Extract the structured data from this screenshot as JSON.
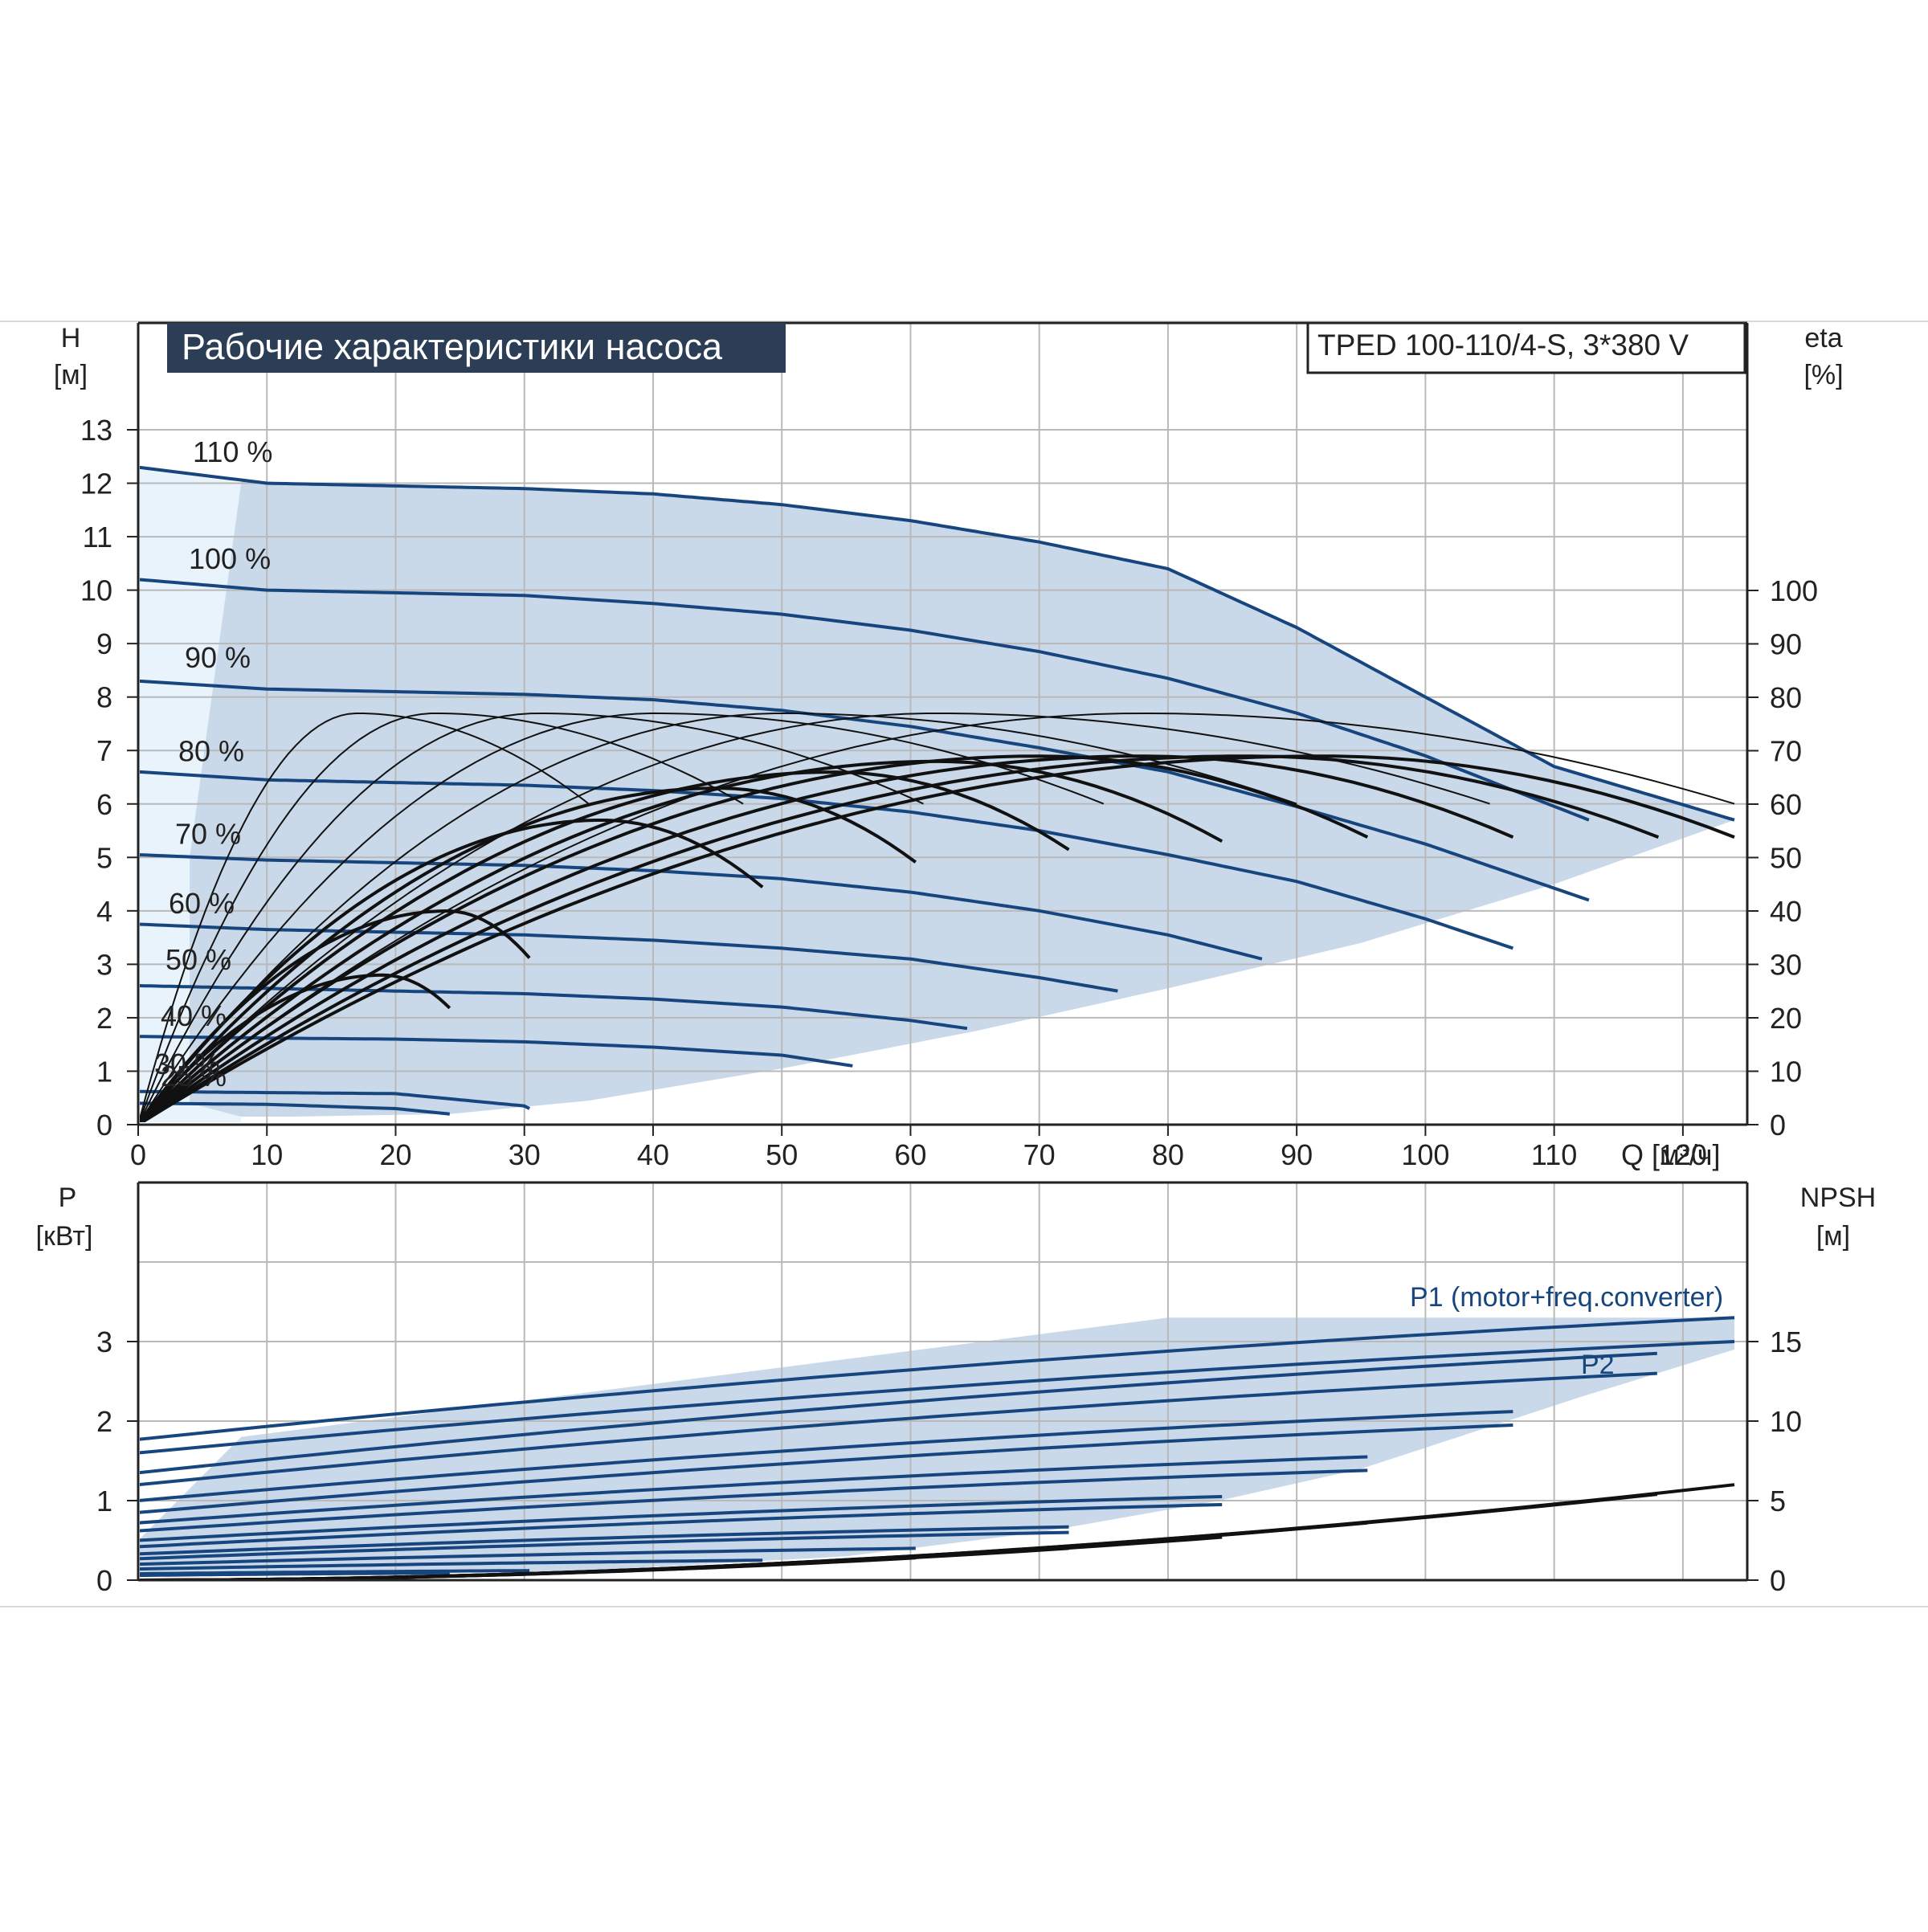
{
  "chart_data": [
    {
      "type": "line",
      "title": "Рабочие характеристики насоса",
      "model": "TPED 100-110/4-S, 3*380 V",
      "xlabel": "Q [м³/ч]",
      "ylabel_left": [
        "H",
        "[м]"
      ],
      "ylabel_right": [
        "eta",
        "[%]"
      ],
      "xlim": [
        0,
        125
      ],
      "ylim_left": [
        0,
        13
      ],
      "ylim_right": [
        0,
        100
      ],
      "x_ticks": [
        0,
        10,
        20,
        30,
        40,
        50,
        60,
        70,
        80,
        90,
        100,
        110,
        120
      ],
      "y_ticks_left": [
        0,
        1,
        2,
        3,
        4,
        5,
        6,
        7,
        8,
        9,
        10,
        11,
        12,
        13
      ],
      "y_ticks_right": [
        0,
        10,
        20,
        30,
        40,
        50,
        60,
        70,
        80,
        90,
        100
      ],
      "grid": true,
      "colors": {
        "curve": "#17467f",
        "area": "#c9d9ea",
        "area_light": "#e8f3fc",
        "eff": "#111111",
        "grid": "#b9b9b9",
        "titlebar": "#2c3e55"
      },
      "speed_curves": [
        {
          "name": "110 %",
          "q": [
            0,
            10,
            20,
            30,
            40,
            50,
            60,
            70,
            80,
            90,
            100,
            110,
            124
          ],
          "h": [
            12.3,
            12.0,
            11.95,
            11.9,
            11.8,
            11.6,
            11.3,
            10.9,
            10.4,
            9.3,
            8.0,
            6.7,
            5.7
          ]
        },
        {
          "name": "100 %",
          "q": [
            0,
            10,
            20,
            30,
            40,
            50,
            60,
            70,
            80,
            90,
            100,
            112.7
          ],
          "h": [
            10.2,
            10.0,
            9.95,
            9.9,
            9.75,
            9.55,
            9.25,
            8.85,
            8.35,
            7.7,
            6.9,
            5.7
          ]
        },
        {
          "name": "90 %",
          "q": [
            0,
            10,
            20,
            30,
            40,
            50,
            60,
            70,
            80,
            90,
            100,
            112.7
          ],
          "h": [
            8.3,
            8.15,
            8.1,
            8.05,
            7.95,
            7.75,
            7.45,
            7.05,
            6.6,
            5.95,
            5.25,
            4.2
          ]
        },
        {
          "name": "80 %",
          "q": [
            0,
            10,
            20,
            30,
            40,
            50,
            60,
            70,
            80,
            90,
            100,
            106.8
          ],
          "h": [
            6.6,
            6.45,
            6.4,
            6.35,
            6.25,
            6.1,
            5.85,
            5.5,
            5.05,
            4.55,
            3.85,
            3.3
          ]
        },
        {
          "name": "70 %",
          "q": [
            0,
            10,
            20,
            30,
            40,
            50,
            60,
            70,
            80,
            87.3
          ],
          "h": [
            5.05,
            4.95,
            4.9,
            4.85,
            4.75,
            4.6,
            4.35,
            4.0,
            3.55,
            3.1
          ]
        },
        {
          "name": "60 %",
          "q": [
            0,
            10,
            20,
            30,
            40,
            50,
            60,
            70,
            76.1
          ],
          "h": [
            3.75,
            3.65,
            3.6,
            3.55,
            3.45,
            3.3,
            3.1,
            2.75,
            2.5
          ]
        },
        {
          "name": "50 %",
          "q": [
            0,
            10,
            20,
            30,
            40,
            50,
            60,
            64.4
          ],
          "h": [
            2.6,
            2.55,
            2.5,
            2.45,
            2.35,
            2.2,
            1.95,
            1.8
          ]
        },
        {
          "name": "40 %",
          "q": [
            0,
            10,
            20,
            30,
            40,
            50,
            55.5
          ],
          "h": [
            1.65,
            1.62,
            1.6,
            1.55,
            1.45,
            1.3,
            1.1
          ]
        },
        {
          "name": "30 %",
          "q": [
            0,
            10,
            20,
            30,
            30.4
          ],
          "h": [
            0.62,
            0.6,
            0.58,
            0.35,
            0.3
          ]
        },
        {
          "name": "25 %",
          "q": [
            0,
            10,
            20,
            24.2
          ],
          "h": [
            0.4,
            0.38,
            0.3,
            0.2
          ]
        }
      ],
      "speed_labels": [
        "110 %",
        "100 %",
        "90 %",
        "80 %",
        "70 %",
        "60 %",
        "50 %",
        "40 %",
        "30 %",
        "25 %"
      ],
      "efficiency_curves": [
        {
          "q_max": 24.2,
          "q_peak": 19,
          "eta_peak": 28
        },
        {
          "q_max": 30.4,
          "q_peak": 24,
          "eta_peak": 40
        },
        {
          "q_max": 48.5,
          "q_peak": 36,
          "eta_peak": 57
        },
        {
          "q_max": 60.4,
          "q_peak": 45,
          "eta_peak": 63
        },
        {
          "q_max": 72.3,
          "q_peak": 54,
          "eta_peak": 66
        },
        {
          "q_max": 84.2,
          "q_peak": 62,
          "eta_peak": 68
        },
        {
          "q_max": 95.5,
          "q_peak": 70,
          "eta_peak": 69
        },
        {
          "q_max": 106.8,
          "q_peak": 78,
          "eta_peak": 69
        },
        {
          "q_max": 118.1,
          "q_peak": 86,
          "eta_peak": 69
        },
        {
          "q_max": 124,
          "q_peak": 92,
          "eta_peak": 69
        },
        {
          "q_max": 35,
          "q_peak": 17,
          "eta_peak": 77,
          "thin": true
        },
        {
          "q_max": 47,
          "q_peak": 23,
          "eta_peak": 77,
          "thin": true
        },
        {
          "q_max": 61,
          "q_peak": 31,
          "eta_peak": 77,
          "thin": true
        },
        {
          "q_max": 75,
          "q_peak": 40,
          "eta_peak": 77,
          "thin": true
        },
        {
          "q_max": 90,
          "q_peak": 50,
          "eta_peak": 77,
          "thin": true
        },
        {
          "q_max": 105,
          "q_peak": 62,
          "eta_peak": 77,
          "thin": true
        },
        {
          "q_max": 124,
          "q_peak": 78,
          "eta_peak": 77,
          "thin": true
        }
      ]
    },
    {
      "type": "line",
      "xlim": [
        0,
        125
      ],
      "ylabel_left": [
        "P",
        "[кВт]"
      ],
      "ylabel_right": [
        "NPSH",
        "[м]"
      ],
      "ylim_left": [
        0,
        4
      ],
      "ylim_right": [
        0,
        20
      ],
      "y_ticks_left": [
        0,
        1,
        2,
        3
      ],
      "y_ticks_right": [
        0,
        5,
        10,
        15
      ],
      "series_labels": [
        "P1 (motor+freq.converter)",
        "P2"
      ],
      "power_curves": [
        {
          "q_max": 124,
          "p_start": 1.77,
          "p_end": 3.3
        },
        {
          "q_max": 124,
          "p_start": 1.6,
          "p_end": 3.0
        },
        {
          "q_max": 118,
          "p_start": 1.35,
          "p_end": 2.85
        },
        {
          "q_max": 118,
          "p_start": 1.2,
          "p_end": 2.6
        },
        {
          "q_max": 106.8,
          "p_start": 1.0,
          "p_end": 2.12
        },
        {
          "q_max": 106.8,
          "p_start": 0.85,
          "p_end": 1.95
        },
        {
          "q_max": 95.5,
          "p_start": 0.72,
          "p_end": 1.55
        },
        {
          "q_max": 95.5,
          "p_start": 0.62,
          "p_end": 1.38
        },
        {
          "q_max": 84.2,
          "p_start": 0.5,
          "p_end": 1.05
        },
        {
          "q_max": 84.2,
          "p_start": 0.42,
          "p_end": 0.95
        },
        {
          "q_max": 72.3,
          "p_start": 0.33,
          "p_end": 0.67
        },
        {
          "q_max": 72.3,
          "p_start": 0.27,
          "p_end": 0.6
        },
        {
          "q_max": 60.4,
          "p_start": 0.2,
          "p_end": 0.4
        },
        {
          "q_max": 48.5,
          "p_start": 0.14,
          "p_end": 0.25
        },
        {
          "q_max": 30.4,
          "p_start": 0.08,
          "p_end": 0.12
        },
        {
          "q_max": 24.2,
          "p_start": 0.06,
          "p_end": 0.09
        }
      ],
      "npsh_curves": [
        {
          "q_max": 124,
          "npsh_end": 6.0
        },
        {
          "q_max": 118,
          "npsh_end": 5.4
        },
        {
          "q_max": 106.8,
          "npsh_end": 4.5
        },
        {
          "q_max": 95.5,
          "npsh_end": 3.6
        },
        {
          "q_max": 84.2,
          "npsh_end": 2.7
        },
        {
          "q_max": 72.3,
          "npsh_end": 2.0
        },
        {
          "q_max": 60.4,
          "npsh_end": 1.4
        }
      ]
    }
  ]
}
